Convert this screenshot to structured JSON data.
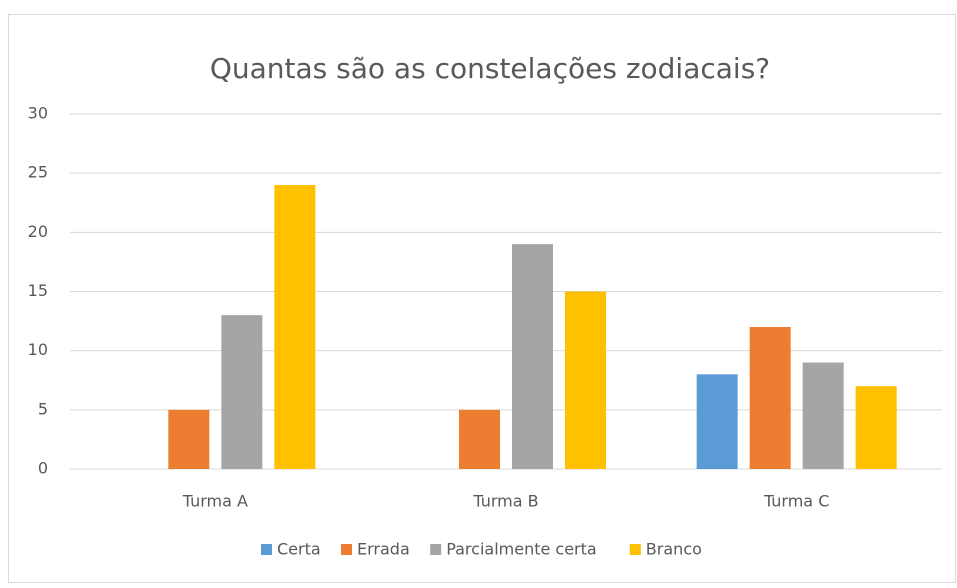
{
  "chart_data": {
    "type": "bar",
    "title": "Quantas são as constelações zodiacais?",
    "categories": [
      "Turma A",
      "Turma B",
      "Turma C"
    ],
    "series": [
      {
        "name": "Certa",
        "color": "#5b9bd5",
        "values": [
          0,
          0,
          8
        ]
      },
      {
        "name": "Errada",
        "color": "#ed7d31",
        "values": [
          5,
          5,
          12
        ]
      },
      {
        "name": "Parcialmente certa",
        "color": "#a5a5a5",
        "values": [
          13,
          19,
          9
        ]
      },
      {
        "name": "Branco",
        "color": "#ffc000",
        "values": [
          24,
          15,
          7
        ]
      }
    ],
    "ylim": [
      0,
      30
    ],
    "yticks": [
      0,
      5,
      10,
      15,
      20,
      25,
      30
    ],
    "grid": true,
    "legend": "bottom"
  }
}
